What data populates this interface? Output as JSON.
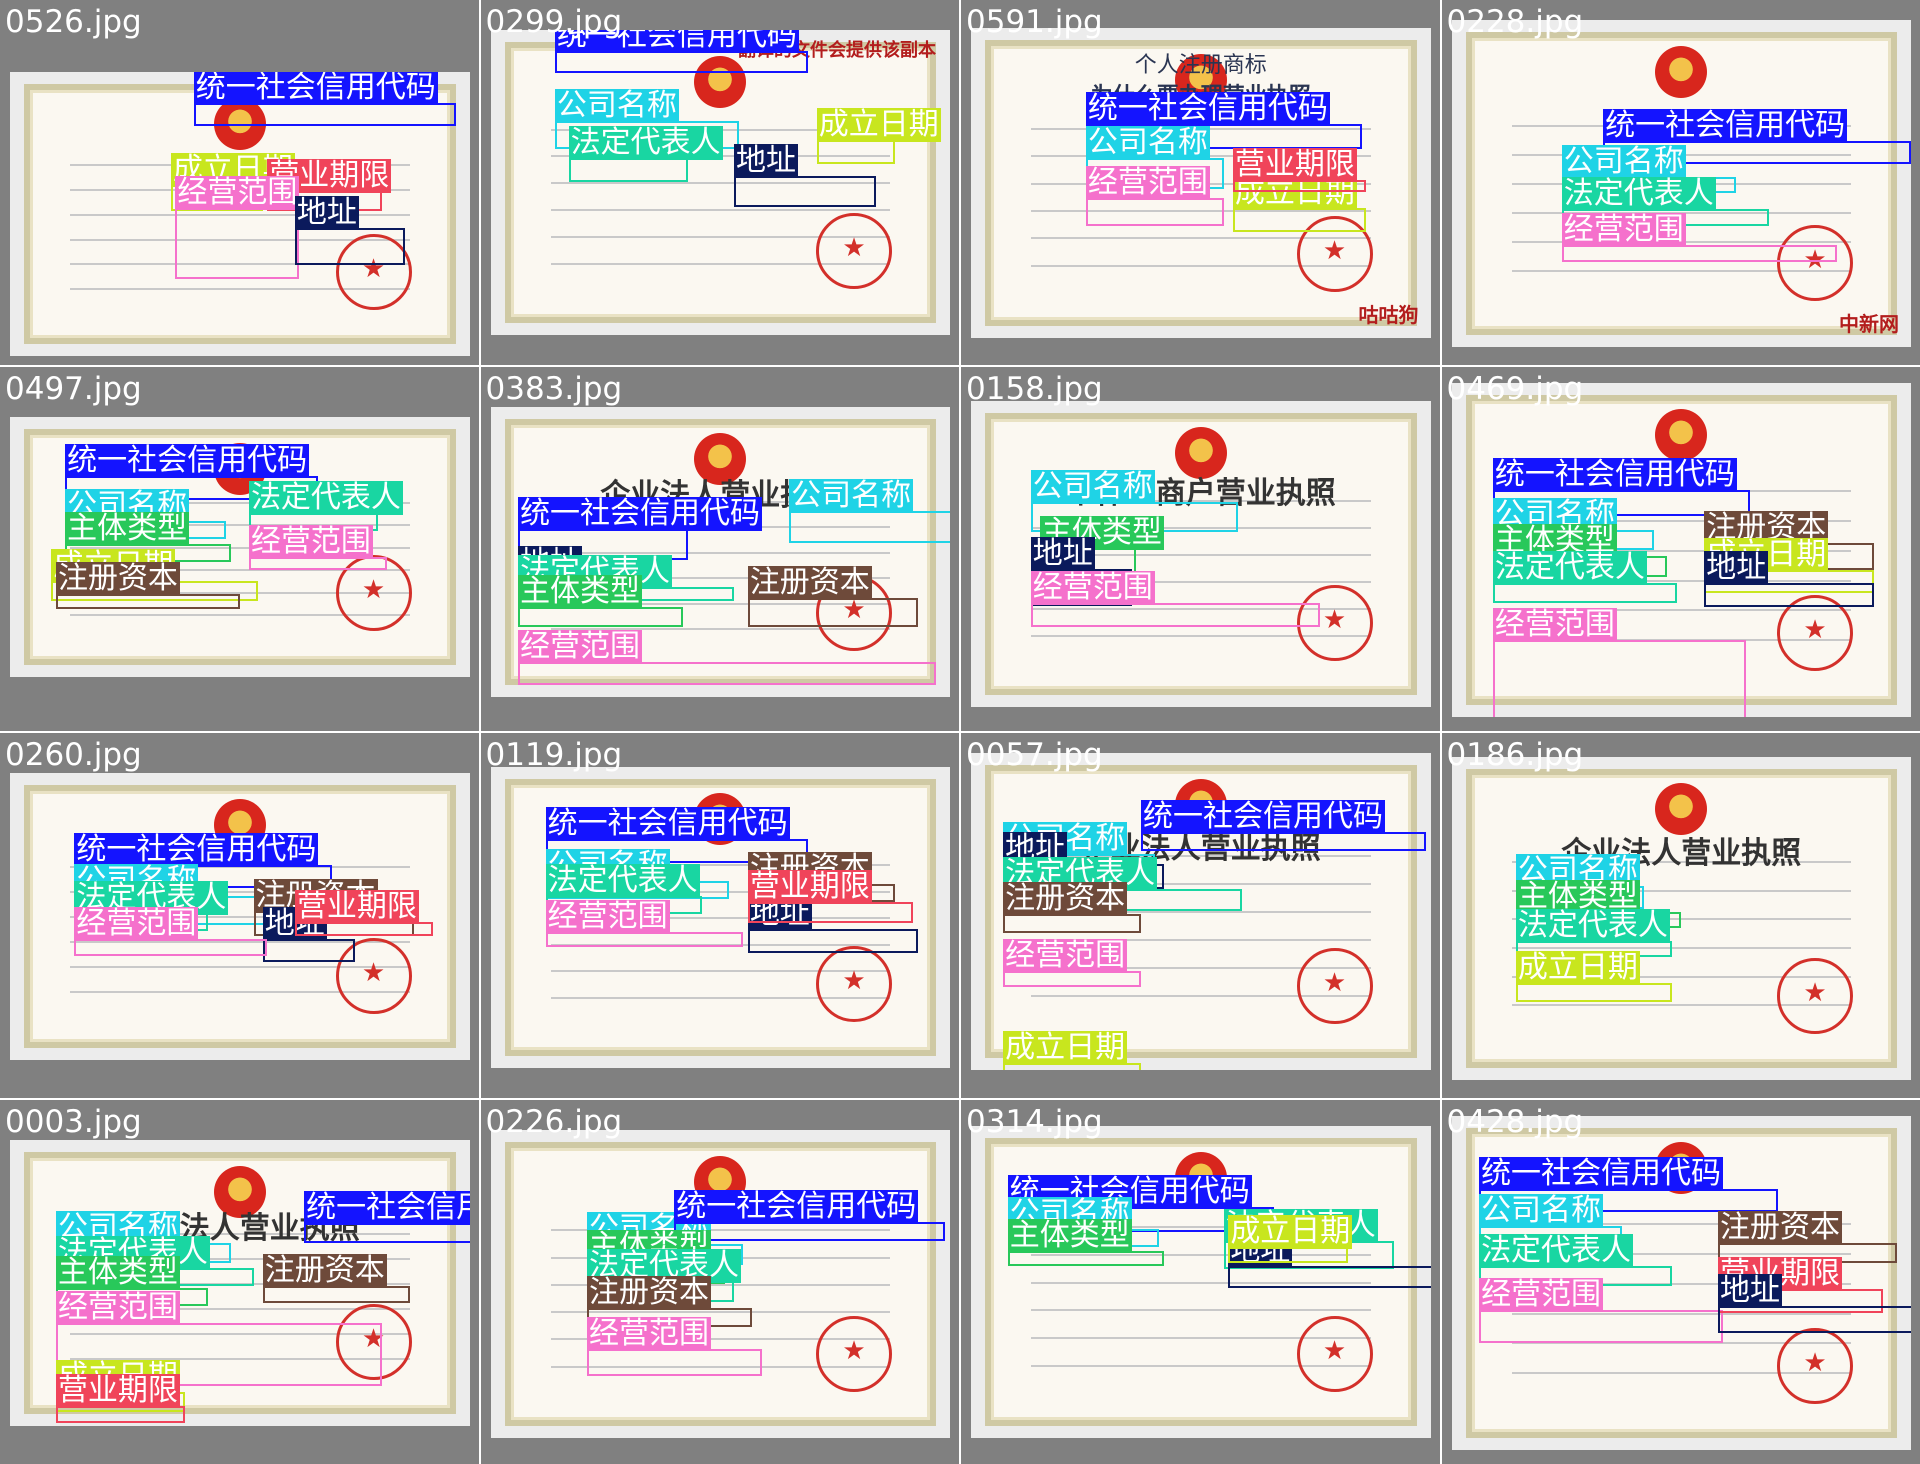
{
  "labels": {
    "credit_code": "统一社会信用代码",
    "company_name": "公司名称",
    "legal_rep": "法定代表人",
    "entity_type": "主体类型",
    "address": "地址",
    "reg_capital": "注册资本",
    "est_date": "成立日期",
    "valid_period": "营业期限",
    "scope": "经营范围"
  },
  "label_colors": {
    "credit_code": "#1414ff",
    "company_name": "#1fd3e6",
    "legal_rep": "#19d6a2",
    "entity_type": "#28c85a",
    "address": "#0b1a5c",
    "reg_capital": "#6e4a3a",
    "est_date": "#c8e61e",
    "valid_period": "#f0445a",
    "scope": "#f571cc"
  },
  "tiles": [
    {
      "file": "0526.jpg",
      "labels": [
        "credit_code",
        "est_date",
        "valid_period",
        "scope",
        "address"
      ]
    },
    {
      "file": "0299.jpg",
      "labels": [
        "credit_code",
        "company_name",
        "legal_rep",
        "address",
        "est_date"
      ],
      "overlay_text": "翻译的文件会提供该副本"
    },
    {
      "file": "0591.jpg",
      "labels": [
        "credit_code",
        "company_name",
        "scope",
        "est_date",
        "valid_period"
      ],
      "banner_line1": "个人注册商标",
      "banner_line2": "为什么要办理营业执照",
      "watermark": "咕咕狗"
    },
    {
      "file": "0228.jpg",
      "labels": [
        "credit_code",
        "company_name",
        "legal_rep",
        "scope"
      ],
      "watermark": "中新网"
    },
    {
      "file": "0497.jpg",
      "labels": [
        "credit_code",
        "company_name",
        "entity_type",
        "legal_rep",
        "est_date",
        "scope",
        "reg_capital"
      ]
    },
    {
      "file": "0383.jpg",
      "labels": [
        "company_name",
        "credit_code",
        "address",
        "legal_rep",
        "entity_type",
        "reg_capital",
        "scope"
      ],
      "doc_title": "企业法人营业执照"
    },
    {
      "file": "0158.jpg",
      "labels": [
        "company_name",
        "entity_type",
        "address",
        "scope"
      ],
      "doc_title": "个体工商户营业执照"
    },
    {
      "file": "0469.jpg",
      "labels": [
        "credit_code",
        "company_name",
        "entity_type",
        "legal_rep",
        "reg_capital",
        "est_date",
        "address",
        "scope"
      ]
    },
    {
      "file": "0260.jpg",
      "labels": [
        "credit_code",
        "company_name",
        "legal_rep",
        "reg_capital",
        "address",
        "valid_period",
        "scope"
      ]
    },
    {
      "file": "0119.jpg",
      "labels": [
        "credit_code",
        "company_name",
        "reg_capital",
        "legal_rep",
        "scope",
        "address",
        "valid_period"
      ]
    },
    {
      "file": "0057.jpg",
      "labels": [
        "company_name",
        "credit_code",
        "address",
        "legal_rep",
        "reg_capital",
        "scope",
        "est_date"
      ],
      "doc_title": "企业法人营业执照"
    },
    {
      "file": "0186.jpg",
      "labels": [
        "company_name",
        "entity_type",
        "legal_rep",
        "est_date"
      ],
      "doc_title": "企业法人营业执照"
    },
    {
      "file": "0003.jpg",
      "labels": [
        "company_name",
        "credit_code",
        "legal_rep",
        "entity_type",
        "reg_capital",
        "scope",
        "est_date",
        "valid_period"
      ],
      "doc_title": "企业法人营业执照"
    },
    {
      "file": "0226.jpg",
      "labels": [
        "company_name",
        "credit_code",
        "entity_type",
        "legal_rep",
        "reg_capital",
        "scope"
      ]
    },
    {
      "file": "0314.jpg",
      "labels": [
        "credit_code",
        "company_name",
        "legal_rep",
        "entity_type",
        "address",
        "est_date"
      ]
    },
    {
      "file": "0428.jpg",
      "labels": [
        "credit_code",
        "company_name",
        "reg_capital",
        "legal_rep",
        "scope",
        "valid_period",
        "address"
      ]
    }
  ]
}
